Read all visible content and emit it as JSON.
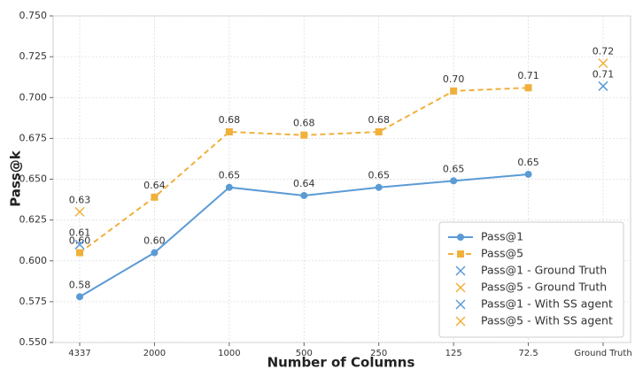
{
  "chart_data": {
    "type": "line",
    "xlabel": "Number of Columns",
    "ylabel": "Pass@k",
    "categories": [
      "4337",
      "2000",
      "1000",
      "500",
      "250",
      "125",
      "72.5",
      "Ground Truth"
    ],
    "ylim": [
      0.55,
      0.75
    ],
    "yticks": [
      {
        "value": 0.55,
        "label": "0.550"
      },
      0.575,
      {
        "value": 0.6,
        "label": "0.600"
      },
      0.625,
      {
        "value": 0.65,
        "label": "0.650"
      },
      0.675,
      {
        "value": 0.7,
        "label": "0.700"
      },
      0.725,
      {
        "value": 0.75,
        "label": "0.750"
      }
    ],
    "grid": true,
    "legend": "lower right",
    "series": [
      {
        "name": "Pass@1",
        "color": "#5b9bd5",
        "marker": "circle",
        "line": "solid",
        "values": [
          0.578,
          0.605,
          0.645,
          0.64,
          0.645,
          0.649,
          0.653,
          null
        ],
        "value_labels": [
          "0.58",
          "0.60",
          "0.65",
          "0.64",
          "0.65",
          "0.65",
          "0.65",
          null
        ]
      },
      {
        "name": "Pass@5",
        "color": "#f0b03c",
        "marker": "square",
        "line": "dashed",
        "values": [
          0.605,
          0.639,
          0.679,
          0.677,
          0.679,
          0.704,
          0.706,
          null
        ],
        "value_labels": [
          "0.60",
          "0.64",
          "0.68",
          "0.68",
          "0.68",
          "0.70",
          "0.71",
          null
        ]
      },
      {
        "name": "Pass@1 - Ground Truth",
        "color": "#5b9bd5",
        "marker": "x",
        "line": "none",
        "values": [
          null,
          null,
          null,
          null,
          null,
          null,
          null,
          0.707
        ],
        "value_labels": [
          null,
          null,
          null,
          null,
          null,
          null,
          null,
          "0.71"
        ]
      },
      {
        "name": "Pass@5 - Ground Truth",
        "color": "#f0b03c",
        "marker": "x",
        "line": "none",
        "values": [
          null,
          null,
          null,
          null,
          null,
          null,
          null,
          0.721
        ],
        "value_labels": [
          null,
          null,
          null,
          null,
          null,
          null,
          null,
          "0.72"
        ]
      },
      {
        "name": "Pass@1 - With SS agent",
        "color": "#5b9bd5",
        "marker": "x",
        "line": "none",
        "values": [
          0.61,
          null,
          null,
          null,
          null,
          null,
          null,
          null
        ],
        "value_labels": [
          "0.61",
          null,
          null,
          null,
          null,
          null,
          null,
          null
        ]
      },
      {
        "name": "Pass@5 - With SS agent",
        "color": "#f0b03c",
        "marker": "x",
        "line": "none",
        "values": [
          0.63,
          null,
          null,
          null,
          null,
          null,
          null,
          null
        ],
        "value_labels": [
          "0.63",
          null,
          null,
          null,
          null,
          null,
          null,
          null
        ]
      }
    ]
  }
}
